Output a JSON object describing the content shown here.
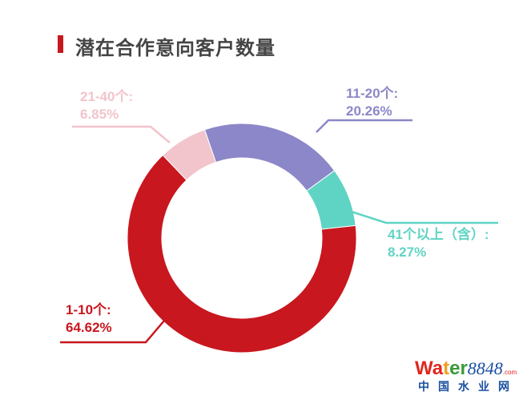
{
  "title": "潜在合作意向客户数量",
  "chart_data": {
    "type": "pie",
    "donut": true,
    "title": "潜在合作意向客户数量",
    "slices": [
      {
        "label": "11-20个:",
        "value": 20.26,
        "value_label": "20.26%",
        "color": "#8b87c8"
      },
      {
        "label": "41个以上（含）:",
        "value": 8.27,
        "value_label": "8.27%",
        "color": "#5fd4c4"
      },
      {
        "label": "1-10个:",
        "value": 64.62,
        "value_label": "64.62%",
        "color": "#c8171e"
      },
      {
        "label": "21-40个:",
        "value": 6.85,
        "value_label": "6.85%",
        "color": "#f2c4cc"
      }
    ]
  },
  "watermark": {
    "brand": "Water8848",
    "suffix": ".com",
    "cn": "中国水业网"
  }
}
